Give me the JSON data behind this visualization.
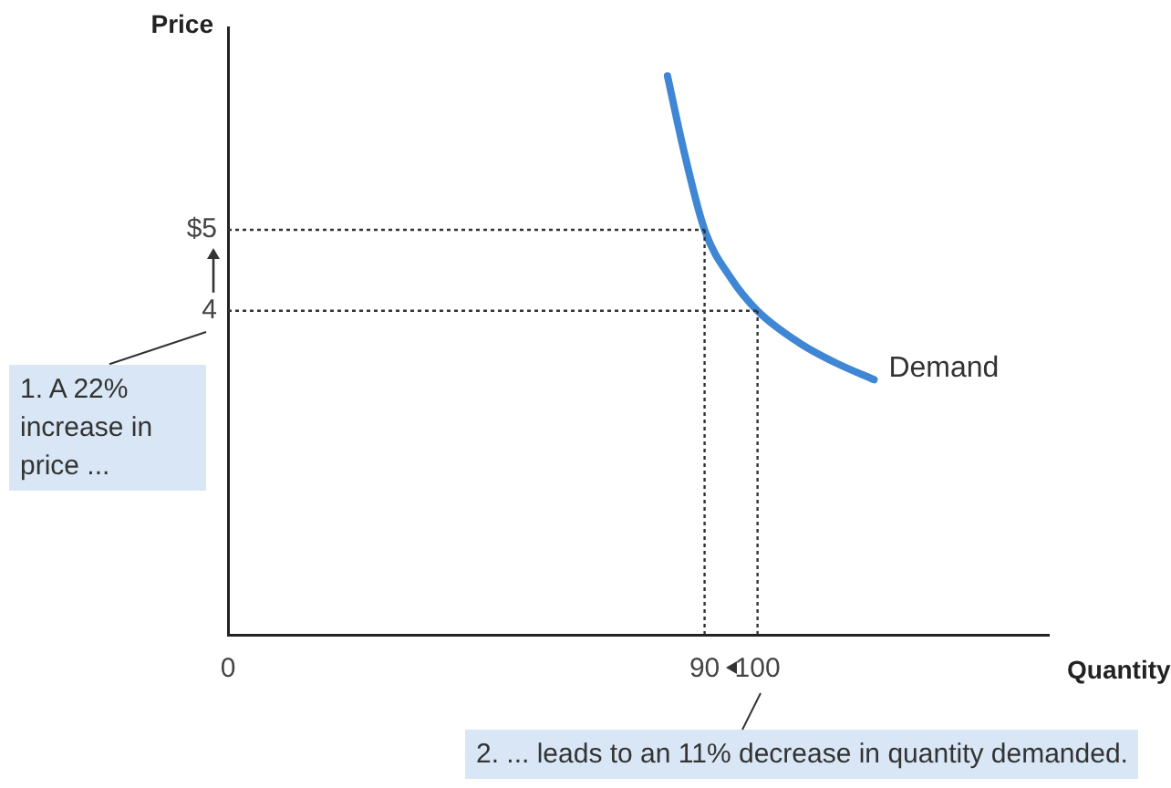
{
  "chart_data": {
    "type": "line",
    "xlabel": "Quantity",
    "ylabel": "Price",
    "xlim": [
      0,
      155
    ],
    "xticks": [
      0,
      90,
      100
    ],
    "ylim": [
      0,
      7.5
    ],
    "yticks": [
      {
        "value": 5,
        "label": "$5"
      },
      4
    ],
    "series": [
      {
        "name": "Demand",
        "color": "#3f86d4",
        "x": [
          83,
          86,
          90,
          95,
          100,
          108,
          115,
          122
        ],
        "values": [
          6.9,
          6.0,
          5,
          4.4,
          4,
          3.6,
          3.35,
          3.15
        ]
      }
    ],
    "ref_lines": [
      {
        "axis": "y",
        "value": 5,
        "color": "#333333",
        "line_style": "dotted"
      },
      {
        "axis": "y",
        "value": 4,
        "color": "#333333",
        "line_style": "dotted"
      },
      {
        "axis": "x",
        "value": 90,
        "color": "#333333",
        "line_style": "dotted"
      },
      {
        "axis": "x",
        "value": 100,
        "color": "#333333",
        "line_style": "dotted"
      }
    ],
    "annotations": [
      "1. A 22% increase in price ...",
      "2. ... leads to an 11% decrease in quantity demanded."
    ],
    "grid": false,
    "legend": false,
    "marker": "none",
    "line_style": "solid"
  }
}
